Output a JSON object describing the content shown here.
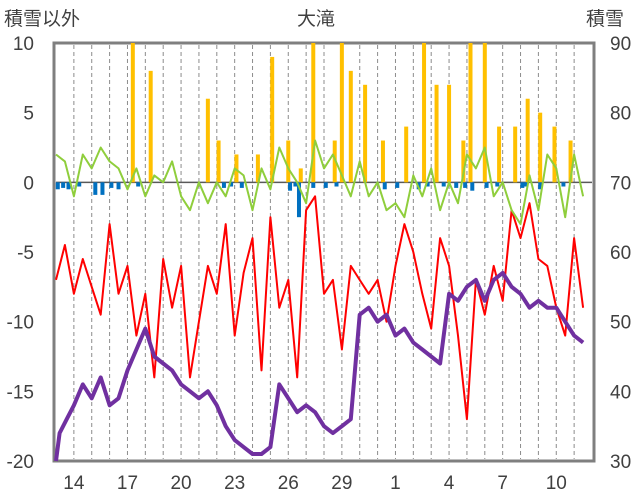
{
  "chart_data": {
    "type": "line",
    "title": "大滝",
    "ylabel_left": "積雪以外",
    "ylabel_right": "積雪",
    "ylim_left": [
      -20,
      10
    ],
    "ylim_right": [
      30,
      90
    ],
    "yticks_left": [
      "10",
      "5",
      "0",
      "-5",
      "-10",
      "-15",
      "-20"
    ],
    "yticks_right": [
      "90",
      "80",
      "70",
      "60",
      "50",
      "40",
      "30"
    ],
    "xticks": [
      "14",
      "17",
      "20",
      "23",
      "26",
      "29",
      "1",
      "4",
      "7",
      "10"
    ],
    "grid": "vertical dashed",
    "x_days": 30,
    "series": [
      {
        "color": "#ff0000",
        "axis": "left",
        "x": [
          0,
          0.5,
          1,
          1.5,
          2,
          2.5,
          3,
          3.5,
          4,
          4.5,
          5,
          5.5,
          6,
          6.5,
          7,
          7.5,
          8,
          8.5,
          9,
          9.5,
          10,
          10.5,
          11,
          11.5,
          12,
          12.5,
          13,
          13.5,
          14,
          14.5,
          15,
          15.5,
          16,
          16.5,
          17,
          17.5,
          18,
          18.5,
          19,
          19.5,
          20,
          20.5,
          21,
          21.5,
          22,
          22.5,
          23,
          23.5,
          24,
          24.5,
          25,
          25.5,
          26,
          26.5,
          27,
          27.5,
          28,
          28.5,
          29,
          29.5
        ],
        "values": [
          -7,
          -4.5,
          -8,
          -5.5,
          -7.5,
          -9.5,
          -3,
          -8,
          -6,
          -11,
          -8,
          -14,
          -5.5,
          -9,
          -6,
          -14,
          -10,
          -6,
          -8,
          -3,
          -11,
          -6.5,
          -4,
          -13.5,
          -2.5,
          -9,
          -7,
          -14,
          -2,
          -1,
          -8,
          -7,
          -12,
          -6,
          -7,
          -8,
          -7,
          -10,
          -6,
          -3,
          -5,
          -8,
          -10.5,
          -4,
          -6,
          -11,
          -17,
          -7,
          -9.5,
          -6,
          -8.5,
          -2,
          -4,
          -1.5,
          -5.5,
          -6,
          -9,
          -11,
          -4,
          -9
        ]
      },
      {
        "color": "#8fce3c",
        "axis": "left",
        "x": [
          0,
          0.5,
          1,
          1.5,
          2,
          2.5,
          3,
          3.5,
          4,
          4.5,
          5,
          5.5,
          6,
          6.5,
          7,
          7.5,
          8,
          8.5,
          9,
          9.5,
          10,
          10.5,
          11,
          11.5,
          12,
          12.5,
          13,
          13.5,
          14,
          14.5,
          15,
          15.5,
          16,
          16.5,
          17,
          17.5,
          18,
          18.5,
          19,
          19.5,
          20,
          20.5,
          21,
          21.5,
          22,
          22.5,
          23,
          23.5,
          24,
          24.5,
          25,
          25.5,
          26,
          26.5,
          27,
          27.5,
          28,
          28.5,
          29,
          29.5
        ],
        "values": [
          2,
          1.5,
          -1,
          2,
          1,
          2.5,
          1.5,
          1,
          -0.5,
          1,
          -1,
          0.5,
          0,
          1.5,
          -1,
          -2,
          0,
          -1.5,
          0,
          -1,
          1,
          0.5,
          -2,
          1,
          -0.5,
          2.5,
          1,
          0,
          -1.5,
          3,
          1,
          2,
          0.5,
          -1,
          1.5,
          -1,
          0,
          -2,
          -1.5,
          -2.5,
          0.5,
          -1,
          1,
          -2,
          0,
          -1.5,
          2,
          1,
          2.5,
          -1,
          0,
          -2,
          -3,
          0.5,
          -2,
          2,
          1,
          -2.5,
          2,
          -1
        ]
      },
      {
        "color": "#7030a0",
        "axis": "right",
        "x": [
          0,
          0.2,
          0.6,
          1,
          1.5,
          2,
          2.5,
          3,
          3.5,
          4,
          4.5,
          5,
          5.5,
          6,
          6.5,
          7,
          7.5,
          8,
          8.5,
          9,
          9.5,
          10,
          10.5,
          11,
          11.5,
          12,
          12.5,
          13,
          13.5,
          14,
          14.5,
          15,
          15.5,
          16,
          16.5,
          17,
          17.5,
          18,
          18.5,
          19,
          19.5,
          20,
          20.5,
          21,
          21.5,
          22,
          22.5,
          23,
          23.5,
          24,
          24.5,
          25,
          25.5,
          26,
          26.5,
          27,
          27.5,
          28,
          28.5,
          29,
          29.5
        ],
        "values": [
          30,
          34,
          36,
          38,
          41,
          39,
          42,
          38,
          39,
          43,
          46,
          49,
          45,
          44,
          43,
          41,
          40,
          39,
          40,
          38,
          35,
          33,
          32,
          31,
          31,
          32,
          41,
          39,
          37,
          38,
          37,
          35,
          34,
          35,
          36,
          51,
          52,
          50,
          51,
          48,
          49,
          47,
          46,
          45,
          44,
          54,
          53,
          55,
          56,
          53,
          56,
          57,
          55,
          54,
          52,
          53,
          52,
          52,
          50,
          48,
          47
        ]
      },
      {
        "color": "#ffc000",
        "type": "bar",
        "axis": "left",
        "x": [
          4.3,
          5.3,
          8.5,
          9.1,
          10.1,
          11.3,
          12.1,
          13,
          13.7,
          14.4,
          15.6,
          16,
          16.5,
          17.3,
          18.3,
          19.6,
          20.6,
          21.3,
          22,
          22.8,
          23.2,
          24,
          24.8,
          25.7,
          26.4,
          27.1,
          27.9,
          28.8
        ],
        "values": [
          10,
          8,
          6,
          3,
          2,
          2,
          9,
          3,
          1,
          10,
          3,
          10,
          8,
          7,
          3,
          4,
          10,
          7,
          7,
          3,
          10,
          10,
          4,
          4,
          6,
          5,
          4,
          3
        ]
      },
      {
        "color": "#0070c0",
        "type": "bar",
        "axis": "left",
        "x": [
          0.1,
          0.4,
          0.7,
          1.3,
          2.2,
          2.6,
          3.1,
          3.5,
          4.6,
          9.4,
          9.8,
          10.4,
          13.1,
          13.4,
          13.6,
          14.4,
          15.1,
          15.7,
          18.4,
          19.1,
          20.3,
          20.8,
          21.7,
          22.4,
          22.9,
          23.3,
          24.1,
          24.7,
          26.1,
          26.3,
          27.1,
          28.4
        ],
        "values": [
          -0.5,
          -0.4,
          -0.5,
          -0.3,
          -0.9,
          -0.9,
          -0.4,
          -0.5,
          -0.3,
          -0.4,
          -0.3,
          -0.4,
          -0.6,
          -0.3,
          -2.5,
          -0.4,
          -0.4,
          -0.3,
          -0.5,
          -0.4,
          -0.5,
          -0.3,
          -0.3,
          -0.4,
          -0.4,
          -0.6,
          -0.4,
          -0.3,
          -0.4,
          -0.3,
          -0.5,
          -0.3
        ]
      }
    ]
  }
}
